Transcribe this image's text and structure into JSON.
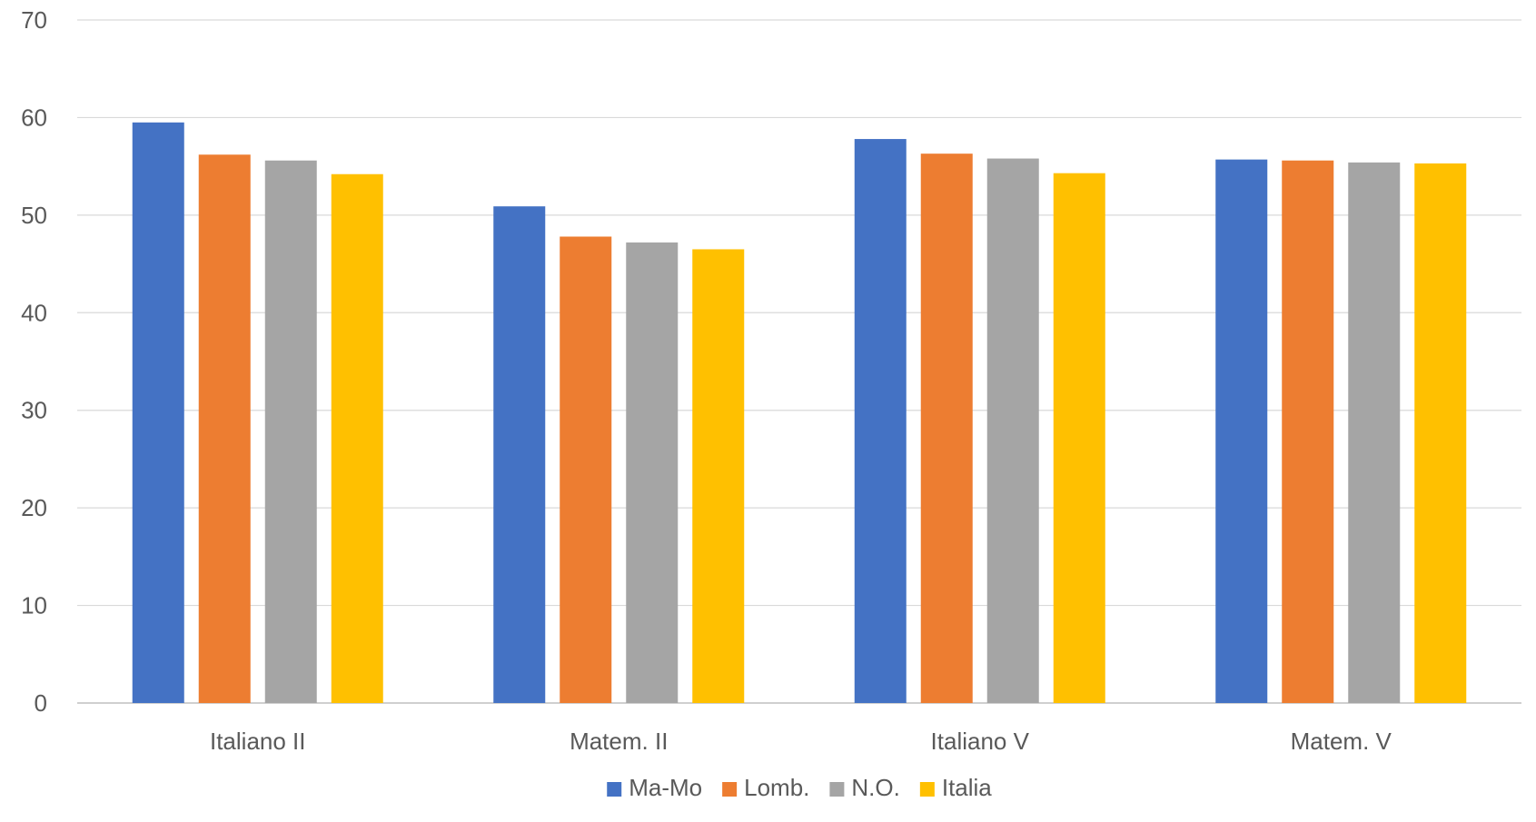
{
  "chart_data": {
    "type": "bar",
    "categories": [
      "Italiano II",
      "Matem. II",
      "Italiano V",
      "Matem. V"
    ],
    "series": [
      {
        "name": "Ma-Mo",
        "color": "#4472C4",
        "values": [
          59.5,
          50.9,
          57.8,
          55.7
        ]
      },
      {
        "name": "Lomb.",
        "color": "#ED7D31",
        "values": [
          56.2,
          47.8,
          56.3,
          55.6
        ]
      },
      {
        "name": "N.O.",
        "color": "#A5A5A5",
        "values": [
          55.6,
          47.2,
          55.8,
          55.4
        ]
      },
      {
        "name": "Italia",
        "color": "#FFC000",
        "values": [
          54.2,
          46.5,
          54.3,
          55.3
        ]
      }
    ],
    "y_ticks": [
      "0",
      "10",
      "20",
      "30",
      "40",
      "50",
      "60",
      "70"
    ],
    "ylim": [
      0,
      70
    ],
    "grid": true,
    "legend_position": "bottom",
    "title": "",
    "xlabel": "",
    "ylabel": ""
  }
}
